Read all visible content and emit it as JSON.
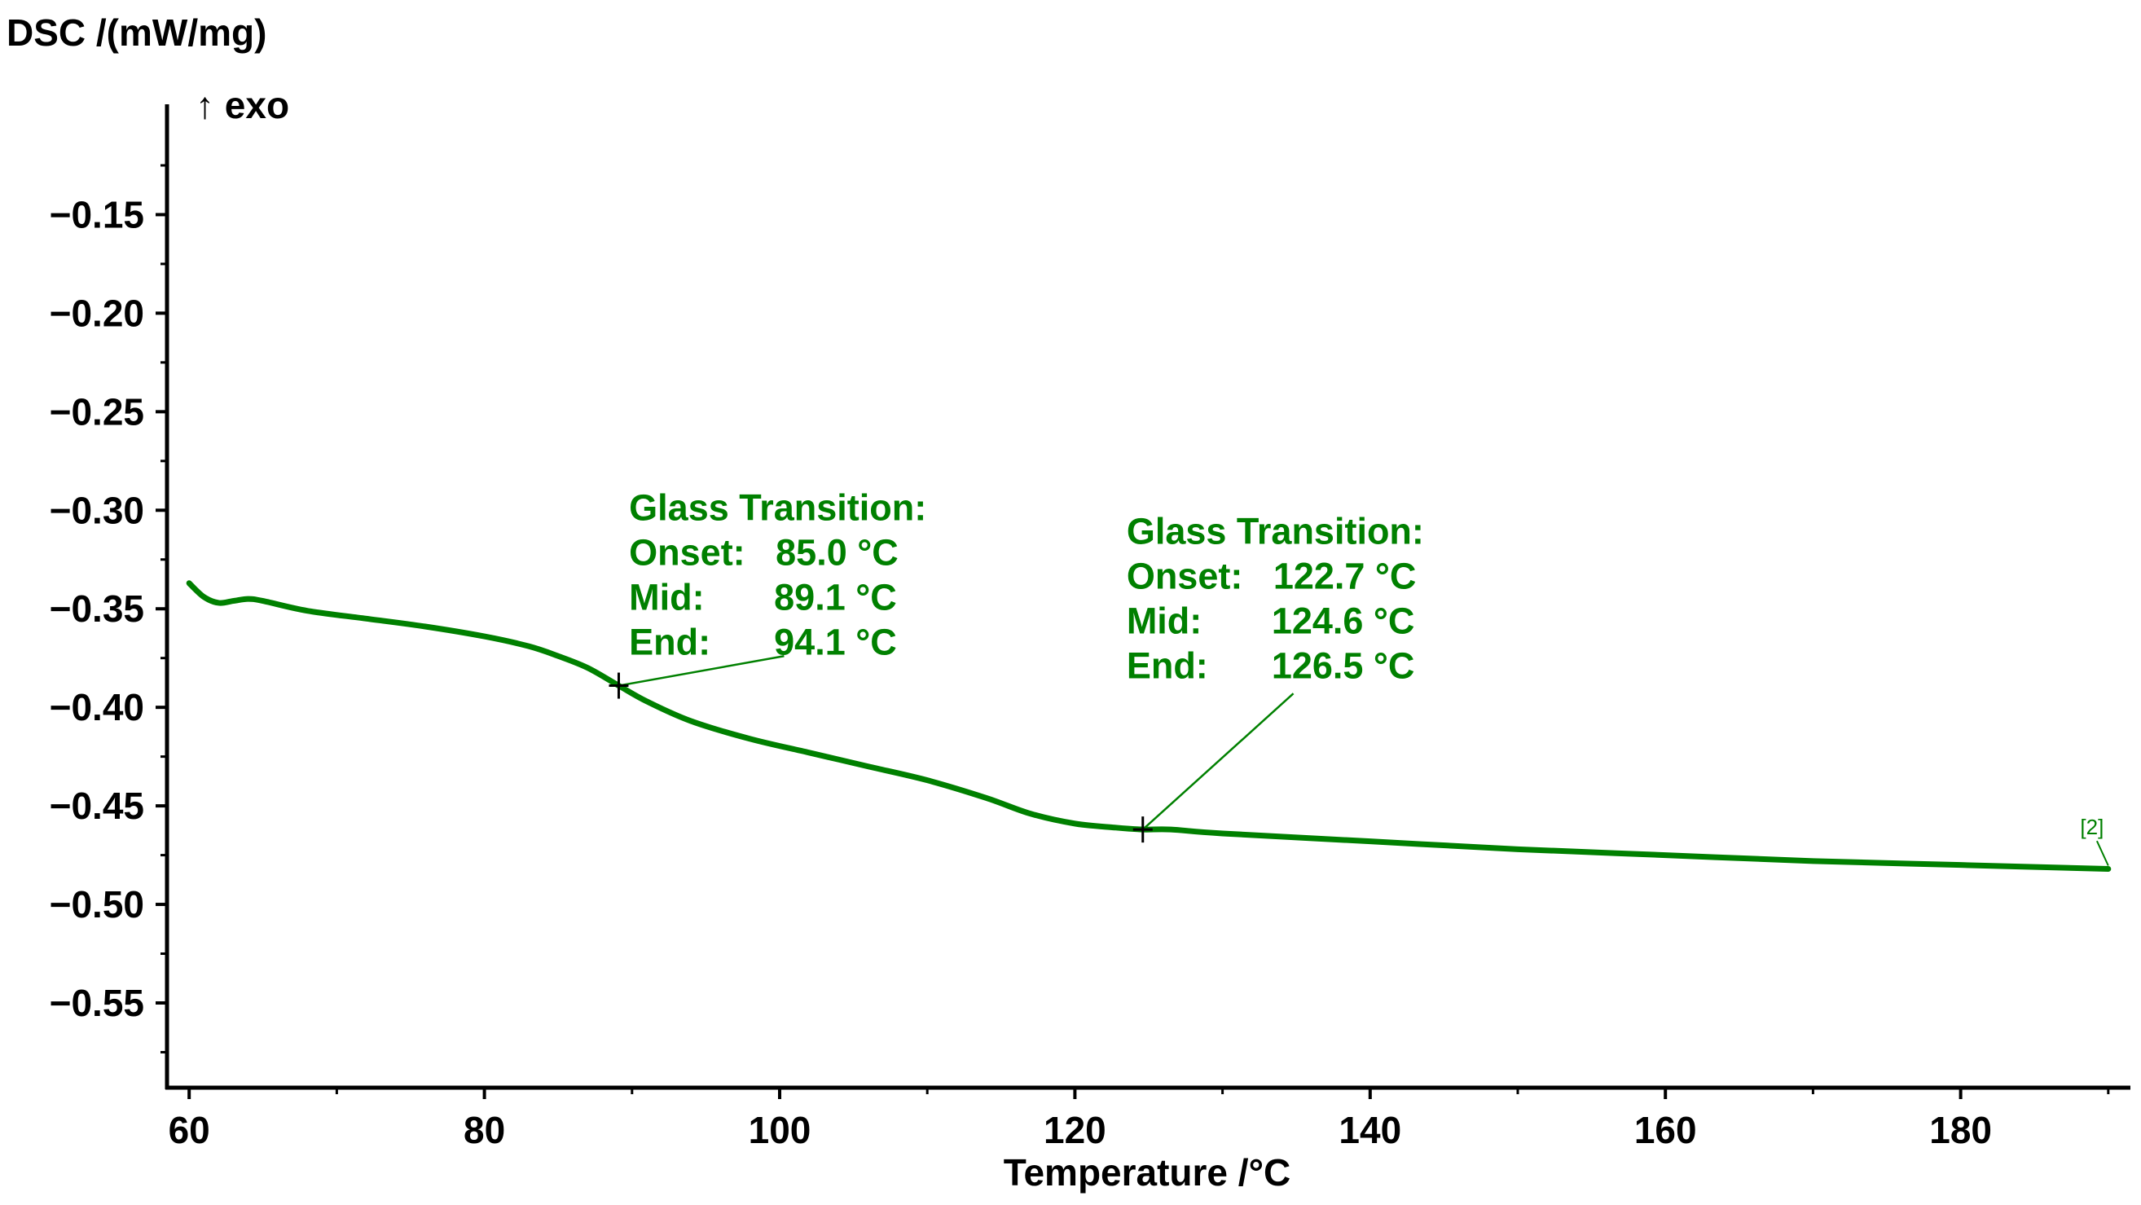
{
  "chart_data": {
    "type": "line",
    "ylabel": "DSC /(mW/mg)",
    "direction_label": "↑ exo",
    "xlabel": "Temperature /°C",
    "xlim": [
      58.5,
      191.5
    ],
    "ylim": [
      -0.593,
      -0.094
    ],
    "x_ticks": [
      60,
      80,
      100,
      120,
      140,
      160,
      180
    ],
    "x_tick_labels": [
      "60",
      "80",
      "100",
      "120",
      "140",
      "160",
      "180"
    ],
    "y_ticks": [
      -0.15,
      -0.2,
      -0.25,
      -0.3,
      -0.35,
      -0.4,
      -0.45,
      -0.5,
      -0.55
    ],
    "y_tick_labels": [
      "−0.15",
      "−0.20",
      "−0.25",
      "−0.30",
      "−0.35",
      "−0.40",
      "−0.45",
      "−0.50",
      "−0.55"
    ],
    "colors": {
      "series": "#008000",
      "axis": "#000000",
      "marker": "#000000"
    },
    "series": [
      {
        "name": "[2]",
        "x": [
          60,
          61,
          62,
          63,
          64,
          65,
          68,
          72,
          76,
          80,
          83,
          85,
          87,
          89.1,
          91,
          94,
          98,
          102,
          106,
          110,
          114,
          117,
          120,
          122.7,
          124.6,
          126.5,
          130,
          140,
          150,
          160,
          170,
          180,
          190
        ],
        "y": [
          -0.337,
          -0.344,
          -0.347,
          -0.346,
          -0.345,
          -0.346,
          -0.351,
          -0.355,
          -0.359,
          -0.364,
          -0.369,
          -0.374,
          -0.38,
          -0.389,
          -0.397,
          -0.407,
          -0.416,
          -0.423,
          -0.43,
          -0.437,
          -0.446,
          -0.454,
          -0.459,
          -0.461,
          -0.462,
          -0.462,
          -0.464,
          -0.468,
          -0.472,
          -0.475,
          -0.478,
          -0.48,
          -0.482
        ]
      }
    ],
    "annotations": [
      {
        "marker": {
          "x": 89.1,
          "y": -0.389
        },
        "label_anchor": {
          "x": 89.8,
          "y": -0.305
        },
        "leader_end": {
          "x": 100.3,
          "y": -0.374
        },
        "lines": [
          {
            "label": "Glass Transition:",
            "value": ""
          },
          {
            "label": "Onset:",
            "value": "85.0 °C"
          },
          {
            "label": "Mid:",
            "value": "89.1 °C"
          },
          {
            "label": "End:",
            "value": "94.1 °C"
          }
        ]
      },
      {
        "marker": {
          "x": 124.6,
          "y": -0.462
        },
        "label_anchor": {
          "x": 123.5,
          "y": -0.317
        },
        "leader_end": {
          "x": 134.8,
          "y": -0.393
        },
        "lines": [
          {
            "label": "Glass Transition:",
            "value": ""
          },
          {
            "label": "Onset:",
            "value": "122.7 °C"
          },
          {
            "label": "Mid:",
            "value": "124.6 °C"
          },
          {
            "label": "End:",
            "value": "126.5 °C"
          }
        ]
      }
    ],
    "series_label": {
      "text": "[2]",
      "x": 188.9,
      "y": -0.4645
    }
  }
}
